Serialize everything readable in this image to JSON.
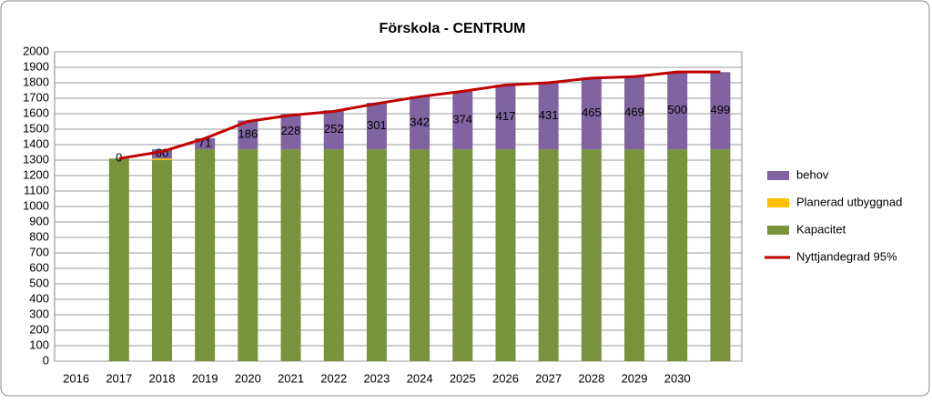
{
  "chart_data": {
    "type": "bar",
    "stacked": true,
    "title": "Förskola - CENTRUM",
    "categories": [
      "2016",
      "2017",
      "2018",
      "2019",
      "2020",
      "2021",
      "2022",
      "2023",
      "2024",
      "2025",
      "2026",
      "2027",
      "2028",
      "2029",
      "2030",
      null
    ],
    "series": [
      {
        "name": "Kapacitet",
        "color": "#77933c",
        "values": [
          null,
          1310,
          1300,
          1370,
          1370,
          1370,
          1370,
          1370,
          1370,
          1370,
          1370,
          1370,
          1370,
          1370,
          1370,
          1370
        ]
      },
      {
        "name": "Planerad utbyggnad",
        "color": "#ffc000",
        "values": [
          null,
          0,
          10,
          0,
          0,
          0,
          0,
          0,
          0,
          0,
          0,
          0,
          0,
          0,
          0,
          0
        ]
      },
      {
        "name": "behov",
        "color": "#8064a2",
        "labels": true,
        "values": [
          null,
          0,
          60,
          71,
          186,
          228,
          252,
          301,
          342,
          374,
          417,
          431,
          465,
          469,
          500,
          499
        ]
      },
      {
        "name": "Nyttjandegrad 95%",
        "color": "#c00000",
        "kind": "line",
        "values": [
          null,
          1310,
          1355,
          1440,
          1550,
          1590,
          1615,
          1665,
          1710,
          1745,
          1785,
          1800,
          1830,
          1840,
          1870,
          1870
        ]
      }
    ],
    "ylim": [
      0,
      2000
    ],
    "yticks": [
      0,
      100,
      200,
      300,
      400,
      500,
      600,
      700,
      800,
      900,
      1000,
      1100,
      1200,
      1300,
      1400,
      1500,
      1600,
      1700,
      1800,
      1900,
      2000
    ],
    "grid": true,
    "legend": "right"
  }
}
